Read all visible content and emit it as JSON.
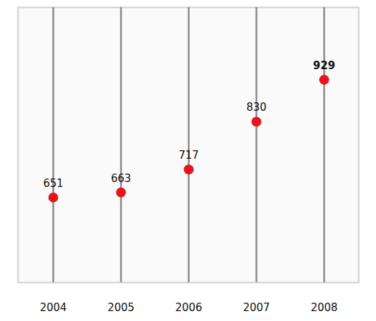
{
  "chart_data": {
    "type": "scatter",
    "categories": [
      "2004",
      "2005",
      "2006",
      "2007",
      "2008"
    ],
    "values": [
      651,
      663,
      717,
      830,
      929
    ],
    "color": "#e8141c",
    "ylim": [
      450,
      1100
    ],
    "data_labels": true,
    "tick_labels": "x"
  }
}
